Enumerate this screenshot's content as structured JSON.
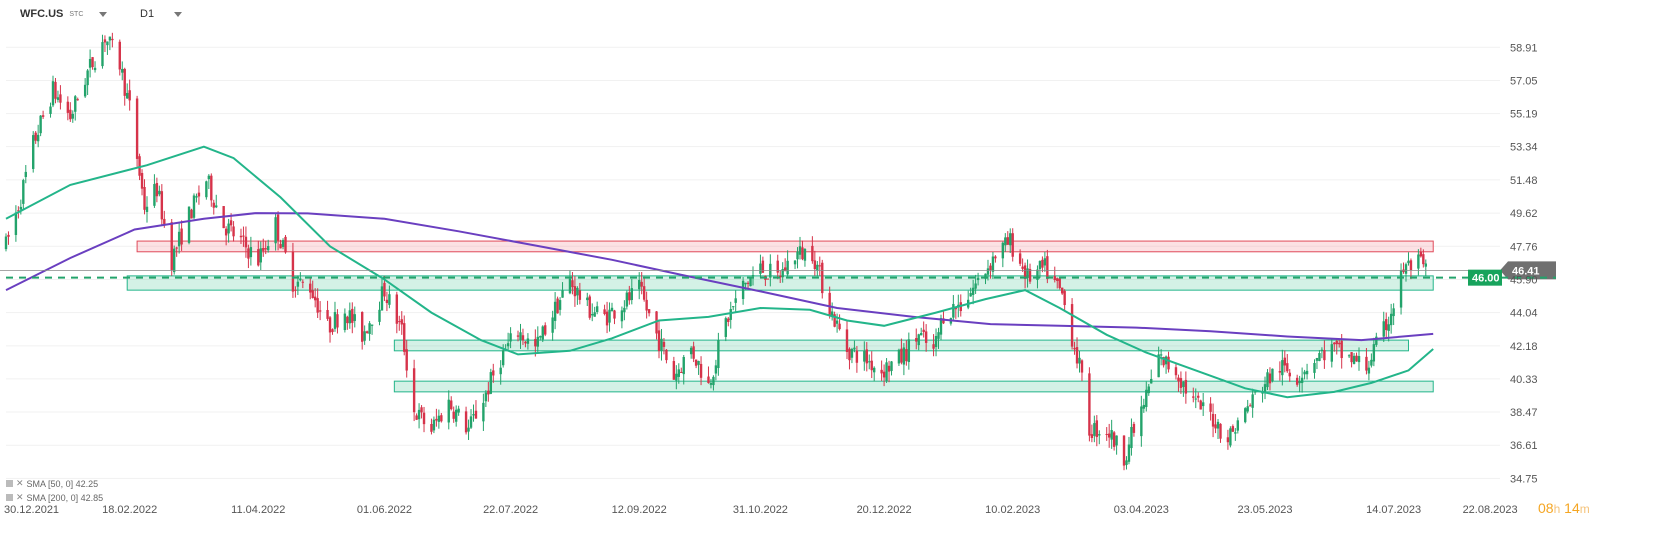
{
  "header": {
    "symbol": "WFC.US",
    "source": "STC",
    "timeframe": "D1"
  },
  "legend": [
    {
      "text": "SMA [50, 0] 42.25",
      "color": "#23b58a"
    },
    {
      "text": "SMA [200, 0] 42.85",
      "color": "#6a3fc0"
    }
  ],
  "timer": {
    "hours": "08",
    "hours_unit": "h",
    "minutes": "14",
    "minutes_unit": "m"
  },
  "colors": {
    "up": "#23a36b",
    "down": "#d6334a",
    "sma50": "#23b58a",
    "sma200": "#6a3fc0",
    "zone_green": "#23b58a",
    "zone_red": "#e04a5a"
  },
  "chart_data": {
    "type": "candlestick",
    "title": "",
    "symbol": "WFC.US",
    "timeframe": "D1",
    "ylim": [
      34.1,
      61.0
    ],
    "y_ticks": [
      "58.91",
      "57.05",
      "55.19",
      "53.34",
      "51.48",
      "49.62",
      "47.76",
      "45.90",
      "44.04",
      "42.18",
      "40.33",
      "38.47",
      "36.61",
      "34.75"
    ],
    "x_ticks": [
      "30.12.2021",
      "18.02.2022",
      "11.04.2022",
      "01.06.2022",
      "22.07.2022",
      "12.09.2022",
      "31.10.2022",
      "20.12.2022",
      "10.02.2023",
      "03.04.2023",
      "23.05.2023",
      "14.07.2023",
      "22.08.2023"
    ],
    "x_range": [
      "2021-12-30",
      "2023-08-26"
    ],
    "last_price": {
      "label": "46.41",
      "value": 46.41
    },
    "pending_level": {
      "label": "46.00",
      "value": 46.0
    },
    "zones": [
      {
        "color": "red",
        "from": "2022-02-21",
        "to": "2023-07-30",
        "low": 47.45,
        "high": 48.05
      },
      {
        "color": "green",
        "from": "2022-02-17",
        "to": "2023-07-30",
        "low": 45.3,
        "high": 46.1
      },
      {
        "color": "green",
        "from": "2022-06-05",
        "to": "2023-07-20",
        "low": 41.9,
        "high": 42.5
      },
      {
        "color": "green",
        "from": "2022-06-05",
        "to": "2023-07-30",
        "low": 39.6,
        "high": 40.2
      }
    ],
    "sma50": [
      [
        "2021-12-30",
        49.3
      ],
      [
        "2022-01-25",
        51.2
      ],
      [
        "2022-02-25",
        52.3
      ],
      [
        "2022-03-20",
        53.34
      ],
      [
        "2022-04-01",
        52.7
      ],
      [
        "2022-04-20",
        50.5
      ],
      [
        "2022-05-10",
        47.76
      ],
      [
        "2022-06-01",
        45.9
      ],
      [
        "2022-06-20",
        44.04
      ],
      [
        "2022-07-10",
        42.5
      ],
      [
        "2022-07-25",
        41.7
      ],
      [
        "2022-08-15",
        41.9
      ],
      [
        "2022-09-01",
        42.6
      ],
      [
        "2022-09-20",
        43.6
      ],
      [
        "2022-10-10",
        43.8
      ],
      [
        "2022-10-31",
        44.3
      ],
      [
        "2022-11-20",
        44.2
      ],
      [
        "2022-12-05",
        43.6
      ],
      [
        "2022-12-20",
        43.3
      ],
      [
        "2023-01-10",
        44.04
      ],
      [
        "2023-01-30",
        44.8
      ],
      [
        "2023-02-15",
        45.3
      ],
      [
        "2023-03-01",
        44.3
      ],
      [
        "2023-03-20",
        42.8
      ],
      [
        "2023-04-05",
        41.8
      ],
      [
        "2023-04-25",
        40.8
      ],
      [
        "2023-05-15",
        39.8
      ],
      [
        "2023-06-01",
        39.3
      ],
      [
        "2023-06-20",
        39.6
      ],
      [
        "2023-07-05",
        40.1
      ],
      [
        "2023-07-20",
        40.8
      ],
      [
        "2023-07-30",
        42.0
      ]
    ],
    "sma200": [
      [
        "2021-12-30",
        45.3
      ],
      [
        "2022-01-25",
        47.1
      ],
      [
        "2022-02-20",
        48.7
      ],
      [
        "2022-03-20",
        49.3
      ],
      [
        "2022-04-10",
        49.62
      ],
      [
        "2022-05-01",
        49.6
      ],
      [
        "2022-06-01",
        49.3
      ],
      [
        "2022-07-01",
        48.6
      ],
      [
        "2022-08-01",
        47.8
      ],
      [
        "2022-09-01",
        47.0
      ],
      [
        "2022-10-01",
        46.1
      ],
      [
        "2022-11-01",
        45.2
      ],
      [
        "2022-12-01",
        44.3
      ],
      [
        "2023-01-01",
        43.8
      ],
      [
        "2023-02-01",
        43.4
      ],
      [
        "2023-03-01",
        43.3
      ],
      [
        "2023-04-01",
        43.2
      ],
      [
        "2023-05-01",
        43.0
      ],
      [
        "2023-06-01",
        42.7
      ],
      [
        "2023-07-01",
        42.5
      ],
      [
        "2023-07-30",
        42.85
      ]
    ],
    "price_path": [
      [
        "2021-12-30",
        47.8
      ],
      [
        "2022-01-05",
        50.5
      ],
      [
        "2022-01-10",
        53.5
      ],
      [
        "2022-01-18",
        56.5
      ],
      [
        "2022-01-25",
        55.0
      ],
      [
        "2022-02-01",
        57.5
      ],
      [
        "2022-02-08",
        59.5
      ],
      [
        "2022-02-14",
        58.0
      ],
      [
        "2022-02-18",
        55.5
      ],
      [
        "2022-02-24",
        50.0
      ],
      [
        "2022-03-01",
        51.0
      ],
      [
        "2022-03-07",
        47.0
      ],
      [
        "2022-03-14",
        49.5
      ],
      [
        "2022-03-21",
        51.5
      ],
      [
        "2022-03-28",
        49.0
      ],
      [
        "2022-04-04",
        48.0
      ],
      [
        "2022-04-11",
        47.0
      ],
      [
        "2022-04-18",
        49.0
      ],
      [
        "2022-04-25",
        45.8
      ],
      [
        "2022-05-02",
        45.5
      ],
      [
        "2022-05-09",
        43.2
      ],
      [
        "2022-05-16",
        44.2
      ],
      [
        "2022-05-23",
        42.8
      ],
      [
        "2022-06-01",
        45.3
      ],
      [
        "2022-06-08",
        43.0
      ],
      [
        "2022-06-13",
        38.5
      ],
      [
        "2022-06-20",
        37.5
      ],
      [
        "2022-06-27",
        39.0
      ],
      [
        "2022-07-05",
        37.5
      ],
      [
        "2022-07-12",
        39.5
      ],
      [
        "2022-07-18",
        41.5
      ],
      [
        "2022-07-25",
        43.0
      ],
      [
        "2022-08-01",
        42.0
      ],
      [
        "2022-08-08",
        44.0
      ],
      [
        "2022-08-15",
        45.8
      ],
      [
        "2022-08-22",
        44.3
      ],
      [
        "2022-08-29",
        43.8
      ],
      [
        "2022-09-05",
        44.5
      ],
      [
        "2022-09-12",
        45.3
      ],
      [
        "2022-09-19",
        42.8
      ],
      [
        "2022-09-26",
        40.5
      ],
      [
        "2022-10-03",
        42.0
      ],
      [
        "2022-10-10",
        40.0
      ],
      [
        "2022-10-17",
        43.5
      ],
      [
        "2022-10-24",
        45.5
      ],
      [
        "2022-10-31",
        46.5
      ],
      [
        "2022-11-07",
        46.0
      ],
      [
        "2022-11-14",
        47.3
      ],
      [
        "2022-11-21",
        47.5
      ],
      [
        "2022-11-28",
        44.3
      ],
      [
        "2022-12-05",
        42.0
      ],
      [
        "2022-12-12",
        41.5
      ],
      [
        "2022-12-19",
        40.8
      ],
      [
        "2022-12-27",
        41.5
      ],
      [
        "2023-01-03",
        42.8
      ],
      [
        "2023-01-09",
        41.8
      ],
      [
        "2023-01-13",
        44.0
      ],
      [
        "2023-01-20",
        44.5
      ],
      [
        "2023-01-27",
        45.8
      ],
      [
        "2023-02-03",
        47.3
      ],
      [
        "2023-02-09",
        48.0
      ],
      [
        "2023-02-16",
        46.0
      ],
      [
        "2023-02-23",
        46.5
      ],
      [
        "2023-03-02",
        45.0
      ],
      [
        "2023-03-09",
        41.0
      ],
      [
        "2023-03-13",
        37.5
      ],
      [
        "2023-03-20",
        37.5
      ],
      [
        "2023-03-27",
        36.0
      ],
      [
        "2023-04-03",
        38.5
      ],
      [
        "2023-04-10",
        41.5
      ],
      [
        "2023-04-17",
        40.8
      ],
      [
        "2023-04-24",
        39.0
      ],
      [
        "2023-05-01",
        38.3
      ],
      [
        "2023-05-08",
        37.0
      ],
      [
        "2023-05-15",
        38.5
      ],
      [
        "2023-05-22",
        40.0
      ],
      [
        "2023-05-29",
        41.0
      ],
      [
        "2023-06-05",
        40.5
      ],
      [
        "2023-06-12",
        41.5
      ],
      [
        "2023-06-19",
        42.0
      ],
      [
        "2023-06-26",
        41.5
      ],
      [
        "2023-07-03",
        41.0
      ],
      [
        "2023-07-10",
        43.0
      ],
      [
        "2023-07-14",
        44.5
      ],
      [
        "2023-07-18",
        46.5
      ],
      [
        "2023-07-24",
        46.8
      ],
      [
        "2023-07-27",
        46.41
      ]
    ]
  }
}
